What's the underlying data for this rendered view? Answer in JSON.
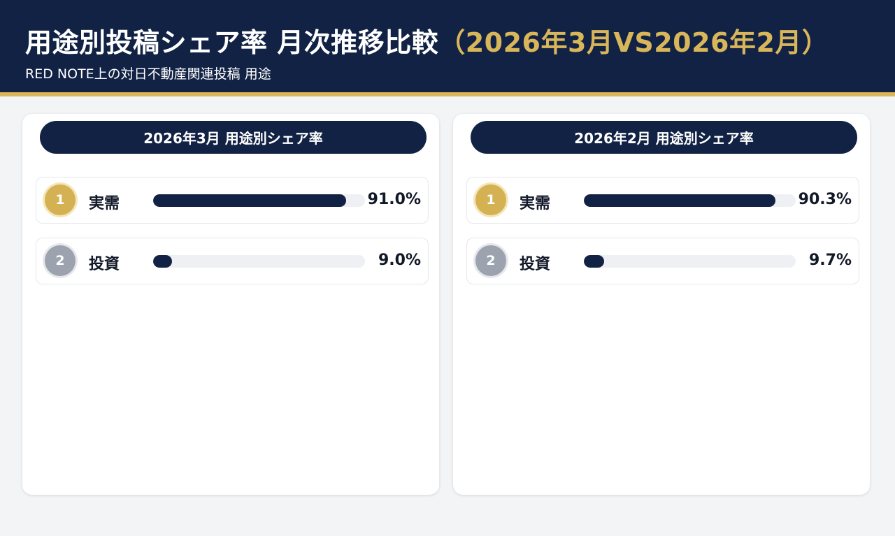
{
  "header": {
    "title_main": "用途別投稿シェア率 月次推移比較",
    "title_accent": "（2026年3月VS2026年2月）",
    "subtitle": "RED NOTE上の対日不動産関連投稿 用途"
  },
  "colors": {
    "navy": "#112244",
    "gold": "#d9b65a",
    "rank1": "#d4b253",
    "rank2": "#9ca3af",
    "track": "#eef0f3"
  },
  "chart_data": [
    {
      "type": "bar",
      "title": "2026年3月 用途別シェア率",
      "categories": [
        "実需",
        "投資"
      ],
      "values": [
        91.0,
        9.0
      ],
      "ranks": [
        "1",
        "2"
      ],
      "value_labels": [
        "91.0%",
        "9.0%"
      ],
      "unit": "%",
      "ylim": [
        0,
        100
      ]
    },
    {
      "type": "bar",
      "title": "2026年2月 用途別シェア率",
      "categories": [
        "実需",
        "投資"
      ],
      "values": [
        90.3,
        9.7
      ],
      "ranks": [
        "1",
        "2"
      ],
      "value_labels": [
        "90.3%",
        "9.7%"
      ],
      "unit": "%",
      "ylim": [
        0,
        100
      ]
    }
  ]
}
